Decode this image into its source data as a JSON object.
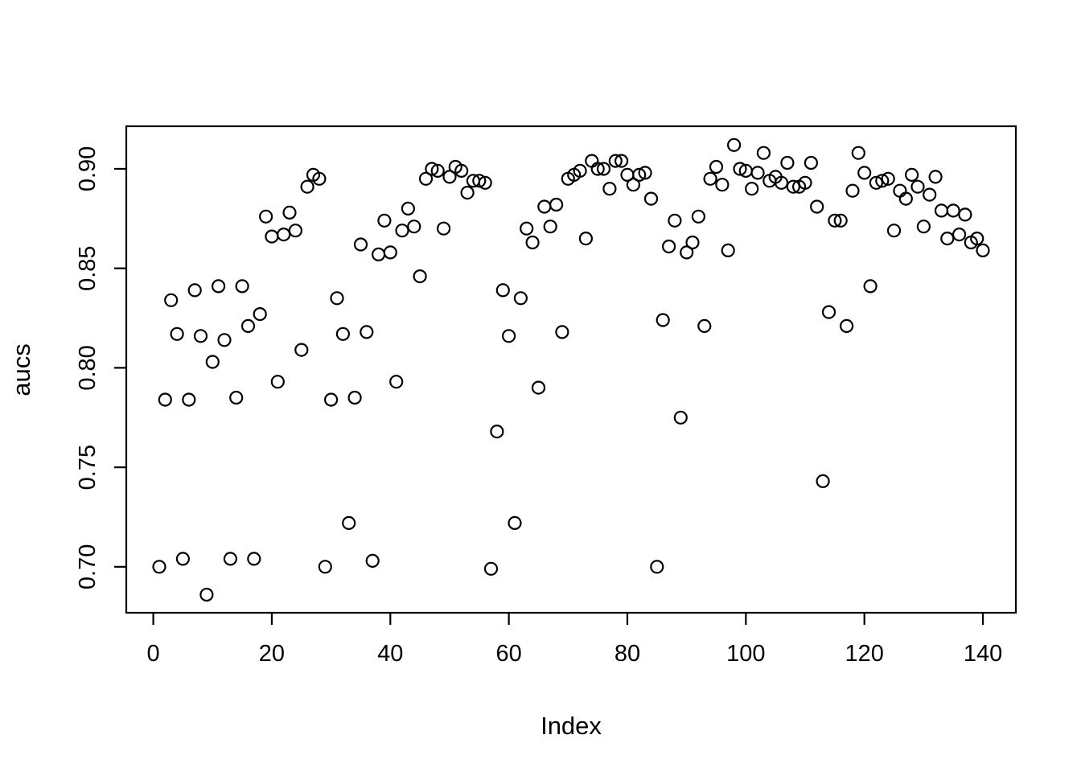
{
  "figure": {
    "background": "#ffffff",
    "foreground": "#000000"
  },
  "chart_data": {
    "type": "scatter",
    "title": "",
    "xlabel": "Index",
    "ylabel": "aucs",
    "x_ticks": [
      0,
      20,
      40,
      60,
      80,
      100,
      120,
      140
    ],
    "y_ticks": [
      0.7,
      0.75,
      0.8,
      0.85,
      0.9
    ],
    "y_tick_labels": [
      "0.70",
      "0.75",
      "0.80",
      "0.85",
      "0.90"
    ],
    "xlim": [
      -4.56,
      145.56
    ],
    "ylim": [
      0.6769,
      0.9214
    ],
    "grid": false,
    "legend": null,
    "marker": "open-circle",
    "marker_color": "#000000",
    "points": [
      [
        1,
        0.7
      ],
      [
        2,
        0.784
      ],
      [
        3,
        0.834
      ],
      [
        4,
        0.817
      ],
      [
        5,
        0.704
      ],
      [
        6,
        0.784
      ],
      [
        7,
        0.839
      ],
      [
        8,
        0.816
      ],
      [
        9,
        0.686
      ],
      [
        10,
        0.803
      ],
      [
        11,
        0.841
      ],
      [
        12,
        0.814
      ],
      [
        13,
        0.704
      ],
      [
        14,
        0.785
      ],
      [
        15,
        0.841
      ],
      [
        16,
        0.821
      ],
      [
        17,
        0.704
      ],
      [
        18,
        0.827
      ],
      [
        19,
        0.876
      ],
      [
        20,
        0.866
      ],
      [
        21,
        0.793
      ],
      [
        22,
        0.867
      ],
      [
        23,
        0.878
      ],
      [
        24,
        0.869
      ],
      [
        25,
        0.809
      ],
      [
        26,
        0.891
      ],
      [
        27,
        0.897
      ],
      [
        28,
        0.895
      ],
      [
        29,
        0.7
      ],
      [
        30,
        0.784
      ],
      [
        31,
        0.835
      ],
      [
        32,
        0.817
      ],
      [
        33,
        0.722
      ],
      [
        34,
        0.785
      ],
      [
        35,
        0.862
      ],
      [
        36,
        0.818
      ],
      [
        37,
        0.703
      ],
      [
        38,
        0.857
      ],
      [
        39,
        0.874
      ],
      [
        40,
        0.858
      ],
      [
        41,
        0.793
      ],
      [
        42,
        0.869
      ],
      [
        43,
        0.88
      ],
      [
        44,
        0.871
      ],
      [
        45,
        0.846
      ],
      [
        46,
        0.895
      ],
      [
        47,
        0.9
      ],
      [
        48,
        0.899
      ],
      [
        49,
        0.87
      ],
      [
        50,
        0.896
      ],
      [
        51,
        0.901
      ],
      [
        52,
        0.899
      ],
      [
        53,
        0.888
      ],
      [
        54,
        0.894
      ],
      [
        55,
        0.894
      ],
      [
        56,
        0.893
      ],
      [
        57,
        0.699
      ],
      [
        58,
        0.768
      ],
      [
        59,
        0.839
      ],
      [
        60,
        0.816
      ],
      [
        61,
        0.722
      ],
      [
        62,
        0.835
      ],
      [
        63,
        0.87
      ],
      [
        64,
        0.863
      ],
      [
        65,
        0.79
      ],
      [
        66,
        0.881
      ],
      [
        67,
        0.871
      ],
      [
        68,
        0.882
      ],
      [
        69,
        0.818
      ],
      [
        70,
        0.895
      ],
      [
        71,
        0.897
      ],
      [
        72,
        0.899
      ],
      [
        73,
        0.865
      ],
      [
        74,
        0.904
      ],
      [
        75,
        0.9
      ],
      [
        76,
        0.9
      ],
      [
        77,
        0.89
      ],
      [
        78,
        0.904
      ],
      [
        79,
        0.904
      ],
      [
        80,
        0.897
      ],
      [
        81,
        0.892
      ],
      [
        82,
        0.897
      ],
      [
        83,
        0.898
      ],
      [
        84,
        0.885
      ],
      [
        85,
        0.7
      ],
      [
        86,
        0.824
      ],
      [
        87,
        0.861
      ],
      [
        88,
        0.874
      ],
      [
        89,
        0.775
      ],
      [
        90,
        0.858
      ],
      [
        91,
        0.863
      ],
      [
        92,
        0.876
      ],
      [
        93,
        0.821
      ],
      [
        94,
        0.895
      ],
      [
        95,
        0.901
      ],
      [
        96,
        0.892
      ],
      [
        97,
        0.859
      ],
      [
        98,
        0.912
      ],
      [
        99,
        0.9
      ],
      [
        100,
        0.899
      ],
      [
        101,
        0.89
      ],
      [
        102,
        0.898
      ],
      [
        103,
        0.908
      ],
      [
        104,
        0.894
      ],
      [
        105,
        0.896
      ],
      [
        106,
        0.893
      ],
      [
        107,
        0.903
      ],
      [
        108,
        0.891
      ],
      [
        109,
        0.891
      ],
      [
        110,
        0.893
      ],
      [
        111,
        0.903
      ],
      [
        112,
        0.881
      ],
      [
        113,
        0.743
      ],
      [
        114,
        0.828
      ],
      [
        115,
        0.874
      ],
      [
        116,
        0.874
      ],
      [
        117,
        0.821
      ],
      [
        118,
        0.889
      ],
      [
        119,
        0.908
      ],
      [
        120,
        0.898
      ],
      [
        121,
        0.841
      ],
      [
        122,
        0.893
      ],
      [
        123,
        0.894
      ],
      [
        124,
        0.895
      ],
      [
        125,
        0.869
      ],
      [
        126,
        0.889
      ],
      [
        127,
        0.885
      ],
      [
        128,
        0.897
      ],
      [
        129,
        0.891
      ],
      [
        130,
        0.871
      ],
      [
        131,
        0.887
      ],
      [
        132,
        0.896
      ],
      [
        133,
        0.879
      ],
      [
        134,
        0.865
      ],
      [
        135,
        0.879
      ],
      [
        136,
        0.867
      ],
      [
        137,
        0.877
      ],
      [
        138,
        0.863
      ],
      [
        139,
        0.865
      ],
      [
        140,
        0.859
      ]
    ]
  }
}
